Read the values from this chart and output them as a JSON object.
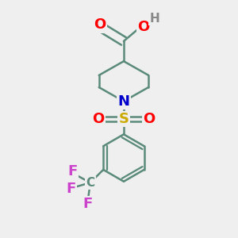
{
  "bg_color": "#efefef",
  "bond_color": "#5a8a7a",
  "bond_width": 1.8,
  "atom_colors": {
    "O": "#ff0000",
    "N": "#0000cc",
    "S": "#ccaa00",
    "F": "#cc44cc",
    "H": "#888888",
    "C": "#5a8a7a"
  },
  "font_size": 13,
  "font_size_h": 11
}
